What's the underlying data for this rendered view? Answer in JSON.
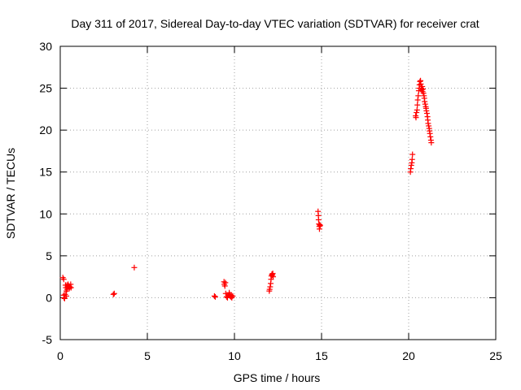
{
  "chart_data": {
    "type": "scatter",
    "title": "Day 311 of 2017, Sidereal Day-to-day VTEC variation (SDTVAR) for receiver crat",
    "xlabel": "GPS time / hours",
    "ylabel": "SDTVAR / TECUs",
    "xlim": [
      0,
      25
    ],
    "ylim": [
      -5,
      30
    ],
    "x_ticks": [
      0,
      5,
      10,
      15,
      20,
      25
    ],
    "y_ticks": [
      -5,
      0,
      5,
      10,
      15,
      20,
      25,
      30
    ],
    "grid": true,
    "marker": "+",
    "series_color": "#ff0000",
    "series": [
      {
        "name": "SDTVAR",
        "points": [
          [
            0.15,
            2.4
          ],
          [
            0.2,
            2.2
          ],
          [
            0.2,
            0.3
          ],
          [
            0.22,
            0.0
          ],
          [
            0.25,
            -0.1
          ],
          [
            0.28,
            0.4
          ],
          [
            0.3,
            1.5
          ],
          [
            0.32,
            1.2
          ],
          [
            0.35,
            0.8
          ],
          [
            0.35,
            0.2
          ],
          [
            0.38,
            1.5
          ],
          [
            0.4,
            1.0
          ],
          [
            0.42,
            1.3
          ],
          [
            0.45,
            1.6
          ],
          [
            0.5,
            1.4
          ],
          [
            0.52,
            1.1
          ],
          [
            0.55,
            1.3
          ],
          [
            0.6,
            1.6
          ],
          [
            0.62,
            1.2
          ],
          [
            3.05,
            0.4
          ],
          [
            3.1,
            0.5
          ],
          [
            4.25,
            3.6
          ],
          [
            8.85,
            0.2
          ],
          [
            8.9,
            0.1
          ],
          [
            9.4,
            1.9
          ],
          [
            9.42,
            1.6
          ],
          [
            9.45,
            1.4
          ],
          [
            9.48,
            1.8
          ],
          [
            9.5,
            0.5
          ],
          [
            9.55,
            0.1
          ],
          [
            9.6,
            0.0
          ],
          [
            9.65,
            0.3
          ],
          [
            9.7,
            0.6
          ],
          [
            9.72,
            0.4
          ],
          [
            9.75,
            0.2
          ],
          [
            9.8,
            0.1
          ],
          [
            9.82,
            0.3
          ],
          [
            9.85,
            0.0
          ],
          [
            9.9,
            0.2
          ],
          [
            12.0,
            0.8
          ],
          [
            12.02,
            1.0
          ],
          [
            12.05,
            1.3
          ],
          [
            12.08,
            1.7
          ],
          [
            12.1,
            2.2
          ],
          [
            12.12,
            2.6
          ],
          [
            12.15,
            2.8
          ],
          [
            12.18,
            2.7
          ],
          [
            12.2,
            2.9
          ],
          [
            12.22,
            2.5
          ],
          [
            14.8,
            10.3
          ],
          [
            14.82,
            9.8
          ],
          [
            14.83,
            9.3
          ],
          [
            14.85,
            8.8
          ],
          [
            14.87,
            8.5
          ],
          [
            14.88,
            8.2
          ],
          [
            14.9,
            8.7
          ],
          [
            14.92,
            8.6
          ],
          [
            20.1,
            15.0
          ],
          [
            20.12,
            15.4
          ],
          [
            20.15,
            15.8
          ],
          [
            20.18,
            16.1
          ],
          [
            20.2,
            16.5
          ],
          [
            20.22,
            17.1
          ],
          [
            20.4,
            21.7
          ],
          [
            20.42,
            21.5
          ],
          [
            20.45,
            22.1
          ],
          [
            20.48,
            22.4
          ],
          [
            20.5,
            23.0
          ],
          [
            20.52,
            23.6
          ],
          [
            20.55,
            24.1
          ],
          [
            20.58,
            24.7
          ],
          [
            20.6,
            25.0
          ],
          [
            20.62,
            25.4
          ],
          [
            20.65,
            25.8
          ],
          [
            20.68,
            25.9
          ],
          [
            20.7,
            25.5
          ],
          [
            20.72,
            25.0
          ],
          [
            20.75,
            24.8
          ],
          [
            20.78,
            25.2
          ],
          [
            20.8,
            24.6
          ],
          [
            20.82,
            24.9
          ],
          [
            20.85,
            24.4
          ],
          [
            20.88,
            24.1
          ],
          [
            20.9,
            23.8
          ],
          [
            20.92,
            23.4
          ],
          [
            20.95,
            23.1
          ],
          [
            20.98,
            22.8
          ],
          [
            21.0,
            22.6
          ],
          [
            21.02,
            22.3
          ],
          [
            21.05,
            22.0
          ],
          [
            21.08,
            21.6
          ],
          [
            21.1,
            21.2
          ],
          [
            21.12,
            20.8
          ],
          [
            21.15,
            20.5
          ],
          [
            21.18,
            20.2
          ],
          [
            21.2,
            19.9
          ],
          [
            21.22,
            19.6
          ],
          [
            21.25,
            19.2
          ],
          [
            21.28,
            18.8
          ],
          [
            21.3,
            18.5
          ]
        ]
      }
    ]
  }
}
